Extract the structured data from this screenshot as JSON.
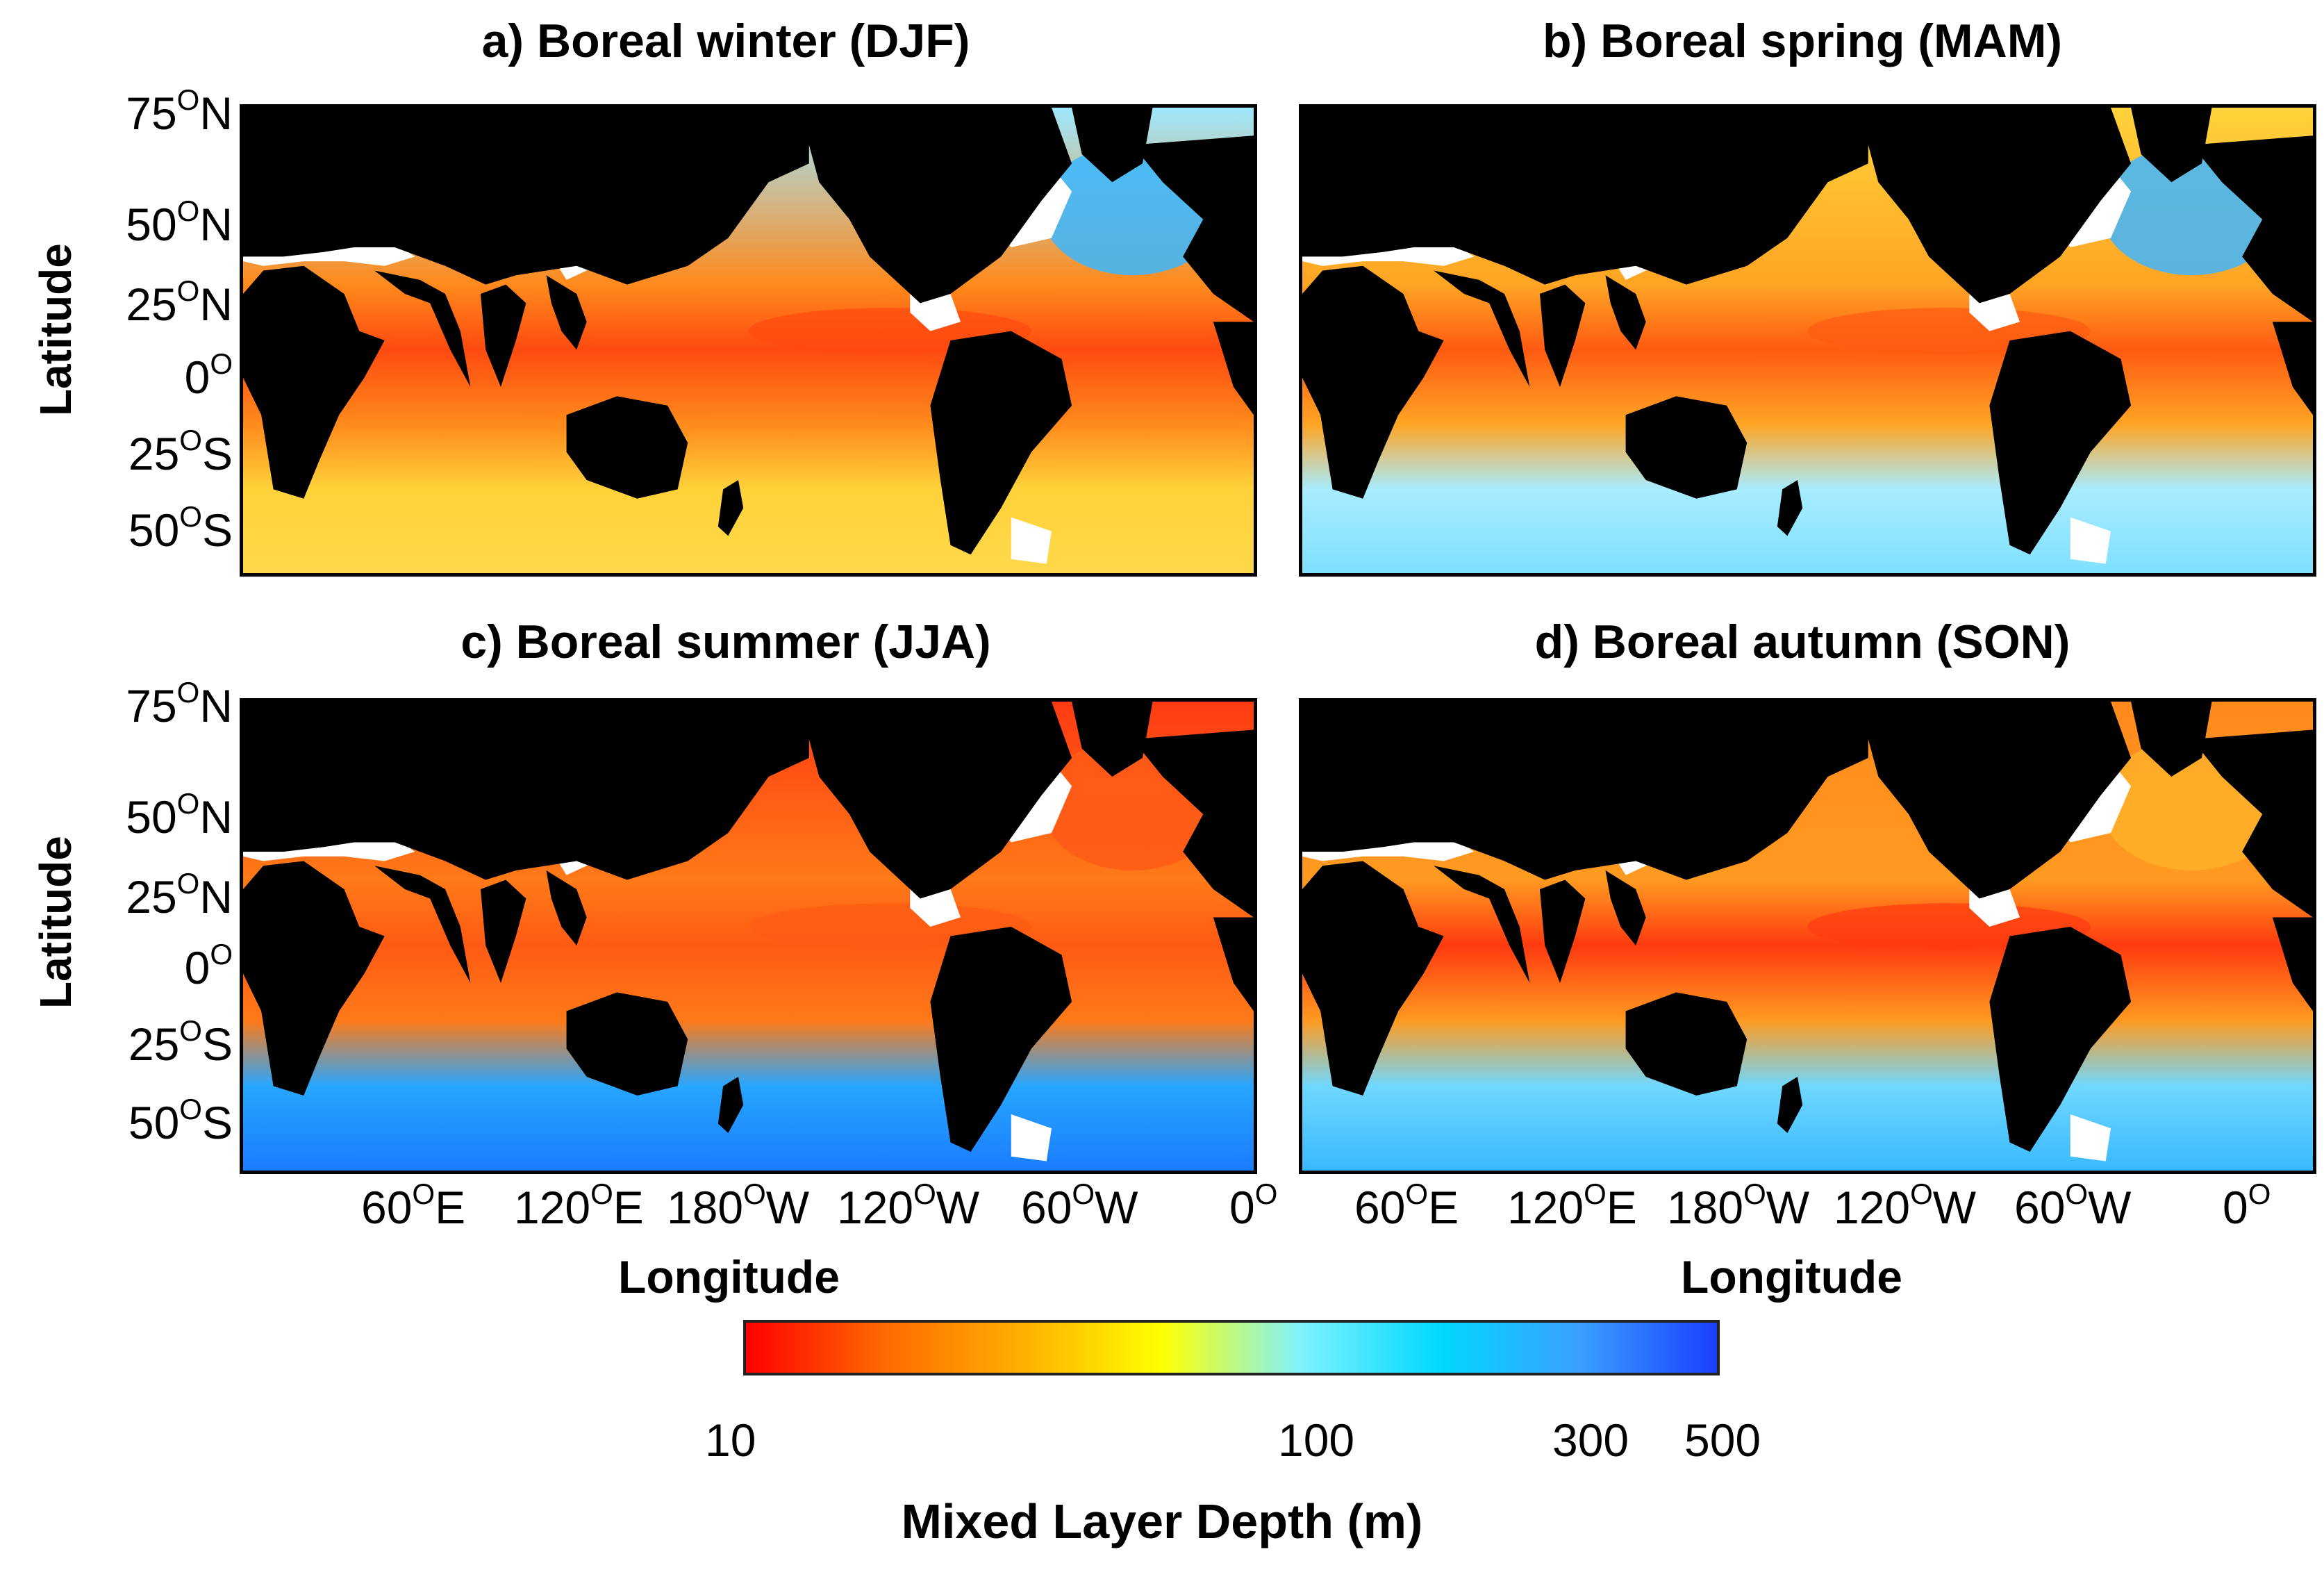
{
  "panels": [
    {
      "title": "a) Boreal winter (DJF)",
      "scheme": "winter"
    },
    {
      "title": "b) Boreal spring (MAM)",
      "scheme": "spring"
    },
    {
      "title": "c) Boreal summer (JJA)",
      "scheme": "summer"
    },
    {
      "title": "d) Boreal autumn (SON)",
      "scheme": "autumn"
    }
  ],
  "axes": {
    "ylabel": "Latitude",
    "xlabel": "Longitude",
    "lat_ticks": [
      {
        "v": "75",
        "s": "N"
      },
      {
        "v": "50",
        "s": "N"
      },
      {
        "v": "25",
        "s": "N"
      },
      {
        "v": "0",
        "s": ""
      },
      {
        "v": "25",
        "s": "S"
      },
      {
        "v": "50",
        "s": "S"
      }
    ],
    "lon_ticks": [
      {
        "v": "60",
        "s": "E"
      },
      {
        "v": "120",
        "s": "E"
      },
      {
        "v": "180",
        "s": "W"
      },
      {
        "v": "120",
        "s": "W"
      },
      {
        "v": "60",
        "s": "W"
      },
      {
        "v": "0",
        "s": ""
      }
    ]
  },
  "colorbar": {
    "label": "Mixed Layer Depth (m)",
    "ticks": [
      "10",
      "100",
      "300",
      "500"
    ],
    "scale": "log",
    "colors": [
      "#ff0000",
      "#ff6a00",
      "#ffb000",
      "#ffff00",
      "#7ff2ff",
      "#00d8ff",
      "#3aa0ff",
      "#1a40ff"
    ]
  },
  "colors": {
    "land": "#000000",
    "ice": "#ffffff"
  }
}
